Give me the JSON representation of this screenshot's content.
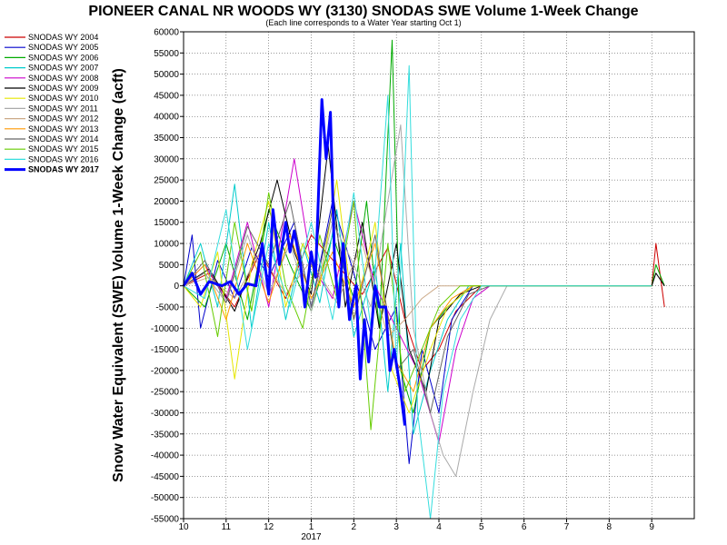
{
  "chart_data": {
    "type": "line",
    "title": "PIONEER CANAL NR WOODS WY (3130) SNODAS SWE Volume 1-Week Change",
    "subtitle": "(Each line corresponds to a Water Year starting Oct 1)",
    "ylabel": "Snow Water Equivalent (SWE) Volume 1-Week Change (acft)",
    "xlabel": "",
    "year_label": "2017",
    "ylim": [
      -55000,
      60000
    ],
    "yticks": [
      60000,
      55000,
      50000,
      45000,
      40000,
      35000,
      30000,
      25000,
      20000,
      15000,
      10000,
      5000,
      0,
      -5000,
      -10000,
      -15000,
      -20000,
      -25000,
      -30000,
      -35000,
      -40000,
      -45000,
      -50000,
      -55000
    ],
    "xlim_months": [
      0,
      12
    ],
    "xticks": [
      {
        "m": 0,
        "label": "10"
      },
      {
        "m": 1,
        "label": "11"
      },
      {
        "m": 2,
        "label": "12"
      },
      {
        "m": 3,
        "label": "1"
      },
      {
        "m": 4,
        "label": "2"
      },
      {
        "m": 5,
        "label": "3"
      },
      {
        "m": 6,
        "label": "4"
      },
      {
        "m": 7,
        "label": "5"
      },
      {
        "m": 8,
        "label": "6"
      },
      {
        "m": 9,
        "label": "7"
      },
      {
        "m": 10,
        "label": "8"
      },
      {
        "m": 11,
        "label": "9"
      }
    ],
    "grid": true,
    "legend_position": "left",
    "series": [
      {
        "name": "SNODAS WY 2004",
        "color": "#cc0000",
        "points": [
          [
            0.0,
            0
          ],
          [
            0.6,
            3000
          ],
          [
            1.2,
            -5000
          ],
          [
            1.8,
            8000
          ],
          [
            2.4,
            -3000
          ],
          [
            3.0,
            12000
          ],
          [
            3.6,
            5000
          ],
          [
            4.2,
            -2000
          ],
          [
            4.8,
            9000
          ],
          [
            5.2,
            -8000
          ],
          [
            5.6,
            -20000
          ],
          [
            6.0,
            -15000
          ],
          [
            6.4,
            -6000
          ],
          [
            7.0,
            0
          ],
          [
            11.0,
            0
          ],
          [
            11.1,
            10000
          ],
          [
            11.3,
            -5000
          ]
        ]
      },
      {
        "name": "SNODAS WY 2005",
        "color": "#0000cc",
        "points": [
          [
            0.0,
            0
          ],
          [
            0.2,
            12000
          ],
          [
            0.4,
            -10000
          ],
          [
            0.8,
            6000
          ],
          [
            1.2,
            -3000
          ],
          [
            1.6,
            9000
          ],
          [
            2.0,
            2000
          ],
          [
            2.6,
            15000
          ],
          [
            3.0,
            -5000
          ],
          [
            3.5,
            20000
          ],
          [
            4.0,
            3000
          ],
          [
            4.5,
            -15000
          ],
          [
            5.0,
            -5000
          ],
          [
            5.3,
            -42000
          ],
          [
            5.6,
            -15000
          ],
          [
            6.0,
            -30000
          ],
          [
            6.3,
            -8000
          ],
          [
            6.8,
            0
          ],
          [
            11.0,
            0
          ]
        ]
      },
      {
        "name": "SNODAS WY 2006",
        "color": "#00aa00",
        "points": [
          [
            0.0,
            0
          ],
          [
            0.5,
            -5000
          ],
          [
            1.0,
            10000
          ],
          [
            1.5,
            -8000
          ],
          [
            2.0,
            18000
          ],
          [
            2.5,
            5000
          ],
          [
            3.0,
            -6000
          ],
          [
            3.5,
            12000
          ],
          [
            4.0,
            -3000
          ],
          [
            4.3,
            20000
          ],
          [
            4.6,
            -10000
          ],
          [
            4.9,
            58000
          ],
          [
            5.1,
            -20000
          ],
          [
            5.4,
            -30000
          ],
          [
            5.8,
            -10000
          ],
          [
            6.2,
            -5000
          ],
          [
            6.8,
            0
          ],
          [
            11.0,
            0
          ],
          [
            11.1,
            5000
          ],
          [
            11.3,
            0
          ]
        ]
      },
      {
        "name": "SNODAS WY 2007",
        "color": "#00cccc",
        "points": [
          [
            0.0,
            0
          ],
          [
            0.4,
            10000
          ],
          [
            0.8,
            -5000
          ],
          [
            1.2,
            24000
          ],
          [
            1.6,
            -10000
          ],
          [
            2.0,
            15000
          ],
          [
            2.4,
            -8000
          ],
          [
            2.8,
            10000
          ],
          [
            3.2,
            -4000
          ],
          [
            3.6,
            18000
          ],
          [
            4.0,
            -12000
          ],
          [
            4.5,
            5000
          ],
          [
            4.8,
            -25000
          ],
          [
            5.1,
            10000
          ],
          [
            5.4,
            -35000
          ],
          [
            5.8,
            -20000
          ],
          [
            6.2,
            -8000
          ],
          [
            6.7,
            0
          ],
          [
            11.0,
            0
          ]
        ]
      },
      {
        "name": "SNODAS WY 2008",
        "color": "#cc00cc",
        "points": [
          [
            0.0,
            0
          ],
          [
            0.5,
            5000
          ],
          [
            1.0,
            -3000
          ],
          [
            1.5,
            15000
          ],
          [
            2.0,
            -5000
          ],
          [
            2.6,
            30000
          ],
          [
            3.0,
            5000
          ],
          [
            3.5,
            -3000
          ],
          [
            4.0,
            20000
          ],
          [
            4.5,
            0
          ],
          [
            5.0,
            -10000
          ],
          [
            5.5,
            -20000
          ],
          [
            6.0,
            -37000
          ],
          [
            6.4,
            -15000
          ],
          [
            6.8,
            -3000
          ],
          [
            7.2,
            0
          ],
          [
            11.0,
            0
          ]
        ]
      },
      {
        "name": "SNODAS WY 2009",
        "color": "#000000",
        "points": [
          [
            0.0,
            0
          ],
          [
            0.6,
            4000
          ],
          [
            1.2,
            -6000
          ],
          [
            1.8,
            10000
          ],
          [
            2.2,
            25000
          ],
          [
            2.6,
            8000
          ],
          [
            3.0,
            -2000
          ],
          [
            3.4,
            33000
          ],
          [
            3.8,
            -5000
          ],
          [
            4.2,
            15000
          ],
          [
            4.6,
            -10000
          ],
          [
            5.0,
            10000
          ],
          [
            5.3,
            -15000
          ],
          [
            5.7,
            -25000
          ],
          [
            6.0,
            -8000
          ],
          [
            6.5,
            -2000
          ],
          [
            7.0,
            0
          ],
          [
            11.0,
            0
          ],
          [
            11.1,
            3000
          ],
          [
            11.3,
            0
          ]
        ]
      },
      {
        "name": "SNODAS WY 2010",
        "color": "#e6e600",
        "points": [
          [
            0.0,
            0
          ],
          [
            0.4,
            -5000
          ],
          [
            0.8,
            8000
          ],
          [
            1.2,
            -22000
          ],
          [
            1.6,
            5000
          ],
          [
            2.0,
            20000
          ],
          [
            2.4,
            -5000
          ],
          [
            2.8,
            10000
          ],
          [
            3.2,
            0
          ],
          [
            3.6,
            25000
          ],
          [
            4.0,
            -8000
          ],
          [
            4.5,
            15000
          ],
          [
            4.9,
            -20000
          ],
          [
            5.3,
            -30000
          ],
          [
            5.8,
            -15000
          ],
          [
            6.2,
            -5000
          ],
          [
            6.8,
            0
          ],
          [
            11.0,
            0
          ]
        ]
      },
      {
        "name": "SNODAS WY 2011",
        "color": "#aaaaaa",
        "points": [
          [
            0.0,
            0
          ],
          [
            0.5,
            3000
          ],
          [
            1.0,
            -4000
          ],
          [
            1.5,
            12000
          ],
          [
            2.0,
            -2000
          ],
          [
            2.5,
            10000
          ],
          [
            3.0,
            -6000
          ],
          [
            3.5,
            15000
          ],
          [
            4.0,
            5000
          ],
          [
            4.4,
            -5000
          ],
          [
            4.8,
            20000
          ],
          [
            5.1,
            38000
          ],
          [
            5.4,
            -10000
          ],
          [
            5.8,
            -30000
          ],
          [
            6.1,
            -40000
          ],
          [
            6.4,
            -45000
          ],
          [
            6.8,
            -25000
          ],
          [
            7.2,
            -8000
          ],
          [
            7.6,
            0
          ],
          [
            11.0,
            0
          ]
        ]
      },
      {
        "name": "SNODAS WY 2012",
        "color": "#ccaa88",
        "points": [
          [
            0.0,
            0
          ],
          [
            0.6,
            2000
          ],
          [
            1.2,
            -3000
          ],
          [
            1.8,
            8000
          ],
          [
            2.4,
            -2000
          ],
          [
            3.0,
            6000
          ],
          [
            3.6,
            -4000
          ],
          [
            4.2,
            10000
          ],
          [
            4.8,
            -12000
          ],
          [
            5.2,
            -8000
          ],
          [
            5.6,
            -3000
          ],
          [
            6.0,
            0
          ],
          [
            11.0,
            0
          ]
        ]
      },
      {
        "name": "SNODAS WY 2013",
        "color": "#ff9900",
        "points": [
          [
            0.0,
            0
          ],
          [
            0.5,
            5000
          ],
          [
            1.0,
            -8000
          ],
          [
            1.5,
            10000
          ],
          [
            2.0,
            -4000
          ],
          [
            2.5,
            12000
          ],
          [
            3.0,
            -3000
          ],
          [
            3.5,
            8000
          ],
          [
            4.0,
            -5000
          ],
          [
            4.5,
            10000
          ],
          [
            5.0,
            -18000
          ],
          [
            5.4,
            -25000
          ],
          [
            5.8,
            -10000
          ],
          [
            6.3,
            -3000
          ],
          [
            6.8,
            0
          ],
          [
            11.0,
            0
          ]
        ]
      },
      {
        "name": "SNODAS WY 2014",
        "color": "#666666",
        "points": [
          [
            0.0,
            0
          ],
          [
            0.5,
            6000
          ],
          [
            1.0,
            -4000
          ],
          [
            1.5,
            14000
          ],
          [
            2.0,
            5000
          ],
          [
            2.5,
            20000
          ],
          [
            3.0,
            -5000
          ],
          [
            3.5,
            18000
          ],
          [
            4.0,
            -8000
          ],
          [
            4.5,
            12000
          ],
          [
            5.0,
            -20000
          ],
          [
            5.4,
            -15000
          ],
          [
            5.8,
            -30000
          ],
          [
            6.2,
            -12000
          ],
          [
            6.7,
            -2000
          ],
          [
            7.2,
            0
          ],
          [
            11.0,
            0
          ]
        ]
      },
      {
        "name": "SNODAS WY 2015",
        "color": "#66cc00",
        "points": [
          [
            0.0,
            0
          ],
          [
            0.4,
            8000
          ],
          [
            0.8,
            -12000
          ],
          [
            1.2,
            15000
          ],
          [
            1.6,
            -6000
          ],
          [
            2.0,
            22000
          ],
          [
            2.4,
            0
          ],
          [
            2.8,
            -10000
          ],
          [
            3.2,
            12000
          ],
          [
            3.6,
            -3000
          ],
          [
            4.0,
            20000
          ],
          [
            4.4,
            -34000
          ],
          [
            4.8,
            10000
          ],
          [
            5.2,
            -25000
          ],
          [
            5.6,
            -15000
          ],
          [
            6.0,
            -5000
          ],
          [
            6.5,
            0
          ],
          [
            11.0,
            0
          ]
        ]
      },
      {
        "name": "SNODAS WY 2016",
        "color": "#33dddd",
        "points": [
          [
            0.0,
            0
          ],
          [
            0.5,
            -3000
          ],
          [
            1.0,
            18000
          ],
          [
            1.5,
            -15000
          ],
          [
            2.0,
            10000
          ],
          [
            2.5,
            -5000
          ],
          [
            3.0,
            15000
          ],
          [
            3.5,
            -8000
          ],
          [
            4.0,
            22000
          ],
          [
            4.4,
            -10000
          ],
          [
            4.8,
            45000
          ],
          [
            5.0,
            -20000
          ],
          [
            5.3,
            52000
          ],
          [
            5.5,
            -30000
          ],
          [
            5.8,
            -55000
          ],
          [
            6.1,
            -25000
          ],
          [
            6.5,
            -8000
          ],
          [
            7.0,
            0
          ],
          [
            11.0,
            0
          ]
        ]
      },
      {
        "name": "SNODAS WY 2017",
        "color": "#0000ff",
        "thick": true,
        "points": [
          [
            0.0,
            0
          ],
          [
            0.2,
            3000
          ],
          [
            0.4,
            -2000
          ],
          [
            0.6,
            1000
          ],
          [
            0.9,
            0
          ],
          [
            1.1,
            1000
          ],
          [
            1.3,
            -2000
          ],
          [
            1.5,
            500
          ],
          [
            1.7,
            0
          ],
          [
            1.85,
            10000
          ],
          [
            2.0,
            -2000
          ],
          [
            2.1,
            18000
          ],
          [
            2.25,
            5000
          ],
          [
            2.4,
            15000
          ],
          [
            2.5,
            8000
          ],
          [
            2.6,
            13000
          ],
          [
            2.75,
            5000
          ],
          [
            2.85,
            -5000
          ],
          [
            3.0,
            8000
          ],
          [
            3.1,
            2000
          ],
          [
            3.25,
            44000
          ],
          [
            3.35,
            30000
          ],
          [
            3.45,
            41000
          ],
          [
            3.55,
            5000
          ],
          [
            3.65,
            -5000
          ],
          [
            3.75,
            10000
          ],
          [
            3.9,
            -8000
          ],
          [
            4.05,
            0
          ],
          [
            4.15,
            -22000
          ],
          [
            4.25,
            -8000
          ],
          [
            4.35,
            -18000
          ],
          [
            4.5,
            0
          ],
          [
            4.6,
            -5000
          ],
          [
            4.75,
            -5000
          ],
          [
            4.85,
            -20000
          ],
          [
            4.95,
            -15000
          ],
          [
            5.1,
            -25000
          ],
          [
            5.2,
            -33000
          ]
        ]
      }
    ]
  }
}
